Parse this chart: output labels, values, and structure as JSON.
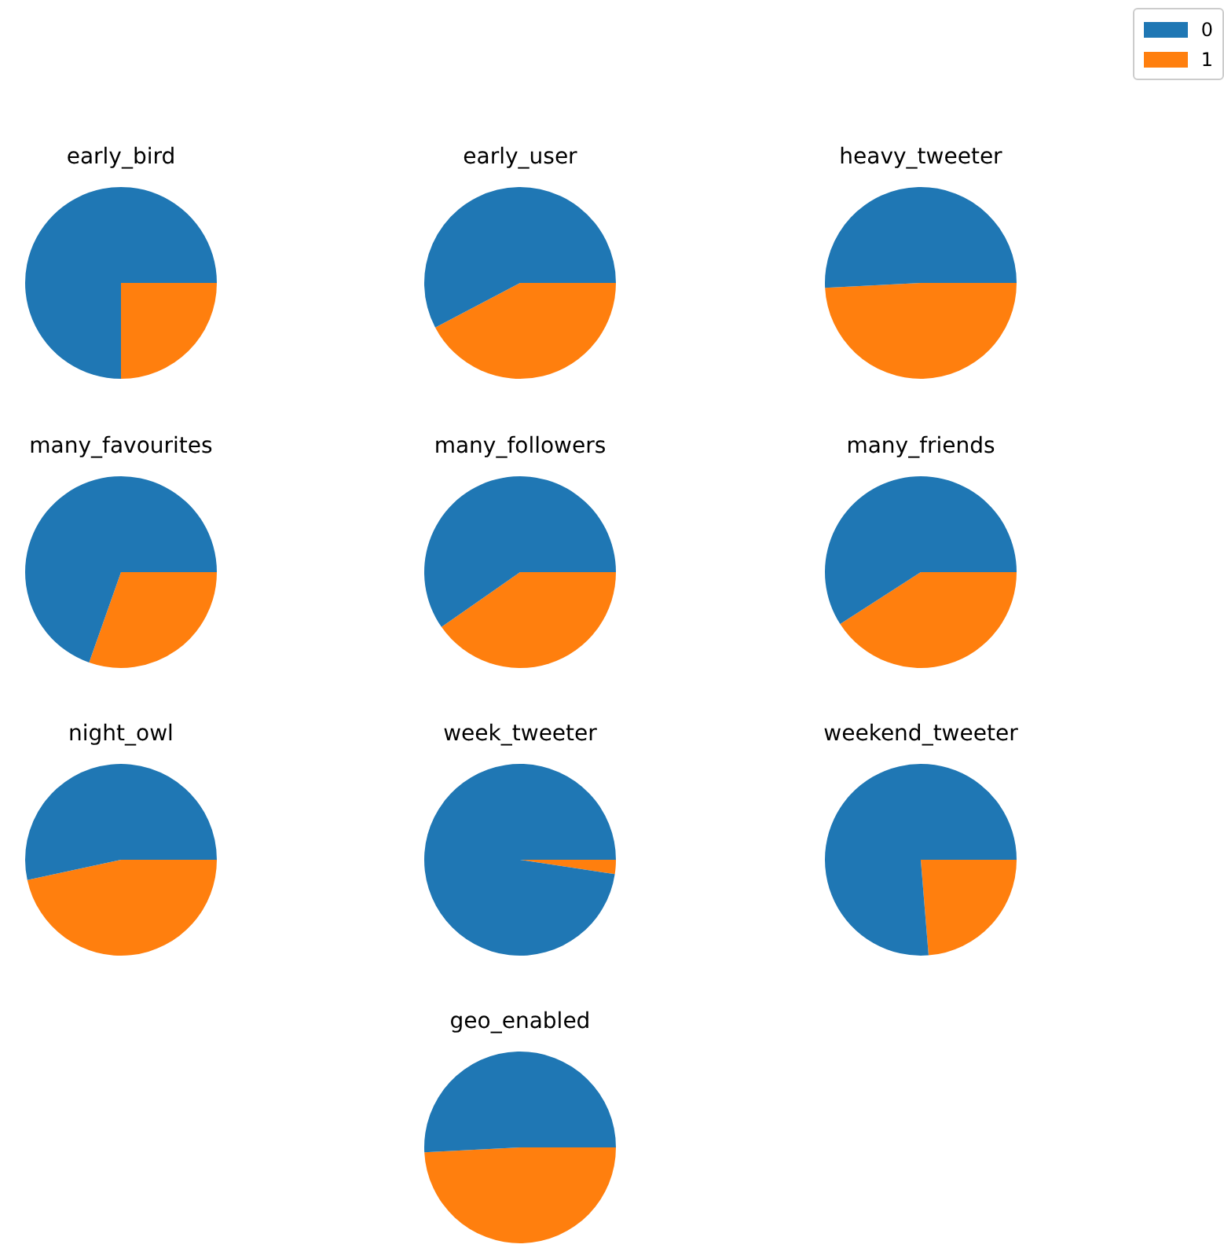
{
  "chart_data": [
    {
      "type": "pie",
      "title": "early_bird",
      "categories": [
        "0",
        "1"
      ],
      "values": [
        75,
        25
      ],
      "colors": [
        "#1f77b4",
        "#ff7f0e"
      ],
      "legend": "top right"
    },
    {
      "type": "pie",
      "title": "early_user",
      "categories": [
        null,
        null
      ],
      "values": [
        57.7,
        42.3
      ],
      "colors": [
        "#1f77b4",
        "#ff7f0e"
      ]
    },
    {
      "type": "pie",
      "title": "heavy_tweeter",
      "categories": [
        null,
        null
      ],
      "values": [
        50.8,
        49.2
      ],
      "colors": [
        "#1f77b4",
        "#ff7f0e"
      ]
    },
    {
      "type": "pie",
      "title": "many_favourites",
      "categories": [
        null,
        null
      ],
      "values": [
        69.6,
        30.4
      ],
      "colors": [
        "#1f77b4",
        "#ff7f0e"
      ]
    },
    {
      "type": "pie",
      "title": "many_followers",
      "categories": [
        null,
        null
      ],
      "values": [
        59.7,
        40.3
      ],
      "colors": [
        "#1f77b4",
        "#ff7f0e"
      ]
    },
    {
      "type": "pie",
      "title": "many_friends",
      "categories": [
        null,
        null
      ],
      "values": [
        59.1,
        40.9
      ],
      "colors": [
        "#1f77b4",
        "#ff7f0e"
      ]
    },
    {
      "type": "pie",
      "title": "night_owl",
      "categories": [
        null,
        null
      ],
      "values": [
        53.4,
        46.6
      ],
      "colors": [
        "#1f77b4",
        "#ff7f0e"
      ]
    },
    {
      "type": "pie",
      "title": "week_tweeter",
      "categories": [
        null,
        null
      ],
      "values": [
        97.6,
        2.4
      ],
      "colors": [
        "#1f77b4",
        "#ff7f0e"
      ]
    },
    {
      "type": "pie",
      "title": "weekend_tweeter",
      "categories": [
        null,
        null
      ],
      "values": [
        76.3,
        23.7
      ],
      "colors": [
        "#1f77b4",
        "#ff7f0e"
      ]
    },
    {
      "type": "pie",
      "title": "geo_enabled",
      "categories": [
        null,
        null
      ],
      "values": [
        50.8,
        49.2
      ],
      "colors": [
        "#1f77b4",
        "#ff7f0e"
      ]
    }
  ]
}
